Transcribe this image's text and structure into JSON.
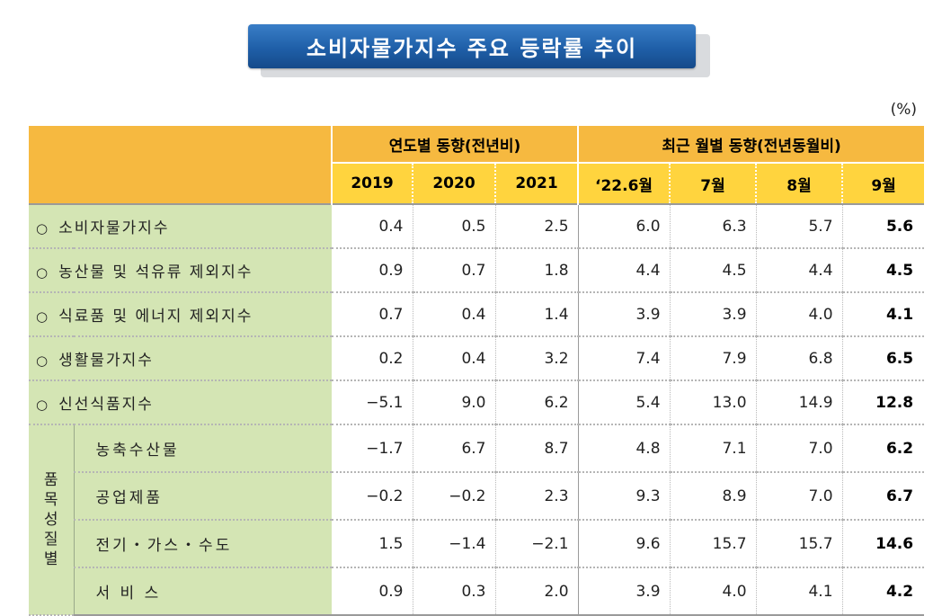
{
  "title": "소비자물가지수 주요 등락률 추이",
  "unit": "(%)",
  "header": {
    "group_annual": "연도별 동향(전년비)",
    "group_monthly": "최근 월별 동향(전년동월비)",
    "columns": [
      "2019",
      "2020",
      "2021",
      "‘22.6월",
      "7월",
      "8월",
      "9월"
    ]
  },
  "rows": [
    {
      "bullet": "○",
      "label": "소비자물가지수",
      "values": [
        "0.4",
        "0.5",
        "2.5",
        "6.0",
        "6.3",
        "5.7",
        "5.6"
      ]
    },
    {
      "bullet": "○",
      "label": "농산물 및 석유류 제외지수",
      "values": [
        "0.9",
        "0.7",
        "1.8",
        "4.4",
        "4.5",
        "4.4",
        "4.5"
      ]
    },
    {
      "bullet": "○",
      "label": "식료품 및 에너지 제외지수",
      "values": [
        "0.7",
        "0.4",
        "1.4",
        "3.9",
        "3.9",
        "4.0",
        "4.1"
      ]
    },
    {
      "bullet": "○",
      "label": "생활물가지수",
      "values": [
        "0.2",
        "0.4",
        "3.2",
        "7.4",
        "7.9",
        "6.8",
        "6.5"
      ]
    },
    {
      "bullet": "○",
      "label": "신선식품지수",
      "values": [
        "−5.1",
        "9.0",
        "6.2",
        "5.4",
        "13.0",
        "14.9",
        "12.8"
      ]
    }
  ],
  "group": {
    "label_chars": [
      "품",
      "목",
      "성",
      "질",
      "별"
    ],
    "rows": [
      {
        "label": "농축수산물",
        "values": [
          "−1.7",
          "6.7",
          "8.7",
          "4.8",
          "7.1",
          "7.0",
          "6.2"
        ]
      },
      {
        "label": "공업제품",
        "values": [
          "−0.2",
          "−0.2",
          "2.3",
          "9.3",
          "8.9",
          "7.0",
          "6.7"
        ]
      },
      {
        "label": "전기・가스・수도",
        "values": [
          "1.5",
          "−1.4",
          "−2.1",
          "9.6",
          "15.7",
          "15.7",
          "14.6"
        ]
      },
      {
        "label": "서 비 스",
        "values": [
          "0.9",
          "0.3",
          "2.0",
          "3.9",
          "4.0",
          "4.1",
          "4.2"
        ]
      }
    ]
  },
  "colors": {
    "title_bg": "#1f5fa8",
    "header_orange": "#f6b940",
    "header_yellow": "#ffd43e",
    "label_green": "#d4e5b4"
  }
}
